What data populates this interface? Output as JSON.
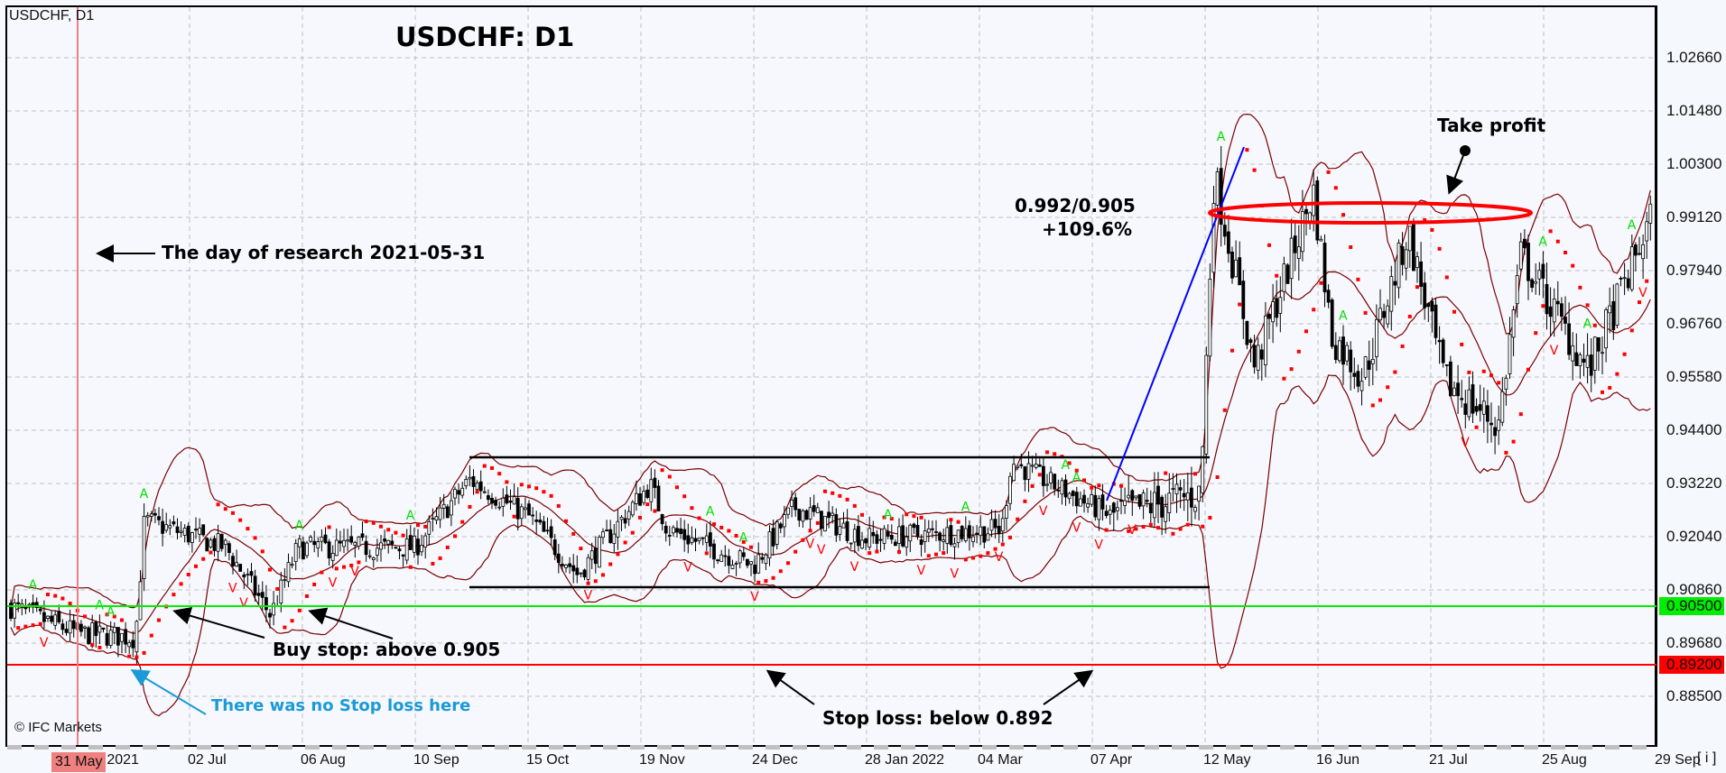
{
  "window": {
    "symbol_label": "USDCHF, D1",
    "title": "USDCHF: D1",
    "copyright": "© IFC Markets",
    "info_button": "[ i ]"
  },
  "annotations": {
    "research_day": "The day of research 2021-05-31",
    "buy_stop": "Buy stop: above 0.905",
    "no_stop_loss": "There was no Stop loss here",
    "stop_loss": "Stop loss: below 0.892",
    "take_profit": "Take profit",
    "ratio": "0.992/0.905",
    "percent": "+109.6%"
  },
  "colors": {
    "background": "#f6f8fd",
    "grid": "#c0c0c0",
    "bollinger": "#7a0000",
    "sar": "#ff0000",
    "fractal_up": "#00dd00",
    "fractal_down": "#ff0000",
    "buy_stop_line": "#00ee00",
    "stop_loss_line": "#ff0000",
    "research_line": "#f08080",
    "trend_line": "#0000ff",
    "channel": "#000000",
    "no_stop_text": "#1a9ad6"
  },
  "y_axis": {
    "ticks": [
      "1.02660",
      "1.01480",
      "1.00300",
      "0.99120",
      "0.97940",
      "0.96760",
      "0.95580",
      "0.94400",
      "0.93220",
      "0.92040",
      "0.90860",
      "0.89680",
      "0.88500"
    ],
    "badges": [
      {
        "label": "0.90500",
        "color": "#00ee00"
      },
      {
        "label": "0.89200",
        "color": "#ff0000"
      }
    ]
  },
  "x_axis": {
    "highlight": "31 May",
    "ticks": [
      "ay 2021",
      "02 Jul",
      "06 Aug",
      "10 Sep",
      "15 Oct",
      "19 Nov",
      "24 Dec",
      "28 Jan 2022",
      "04 Mar",
      "07 Apr",
      "12 May",
      "16 Jun",
      "21 Jul",
      "25 Aug",
      "29 Sep"
    ]
  },
  "chart_data": {
    "type": "candlestick",
    "title": "USDCHF: D1",
    "xlabel": "",
    "ylabel": "",
    "ylim": [
      0.88,
      1.033
    ],
    "grid": true,
    "x_ticks": [
      "31 May 2021",
      "02 Jul",
      "06 Aug",
      "10 Sep",
      "15 Oct",
      "19 Nov",
      "24 Dec",
      "28 Jan 2022",
      "04 Mar",
      "07 Apr",
      "12 May",
      "16 Jun",
      "21 Jul",
      "25 Aug",
      "29 Sep"
    ],
    "y_ticks": [
      1.0266,
      1.0148,
      1.003,
      0.9912,
      0.9794,
      0.9676,
      0.9558,
      0.944,
      0.9322,
      0.9204,
      0.9086,
      0.8968,
      0.885
    ],
    "indicators": [
      "Bollinger Bands",
      "Parabolic SAR",
      "Fractals"
    ],
    "approx_close_path": [
      {
        "date": "2021-05-01",
        "price": 0.905
      },
      {
        "date": "2021-05-31",
        "price": 0.899
      },
      {
        "date": "2021-06-15",
        "price": 0.898
      },
      {
        "date": "2021-06-22",
        "price": 0.924
      },
      {
        "date": "2021-07-20",
        "price": 0.918
      },
      {
        "date": "2021-08-06",
        "price": 0.903
      },
      {
        "date": "2021-08-20",
        "price": 0.918
      },
      {
        "date": "2021-09-10",
        "price": 0.918
      },
      {
        "date": "2021-09-28",
        "price": 0.933
      },
      {
        "date": "2021-10-15",
        "price": 0.925
      },
      {
        "date": "2021-10-29",
        "price": 0.912
      },
      {
        "date": "2021-11-19",
        "price": 0.932
      },
      {
        "date": "2021-11-30",
        "price": 0.922
      },
      {
        "date": "2021-12-24",
        "price": 0.914
      },
      {
        "date": "2022-01-10",
        "price": 0.927
      },
      {
        "date": "2022-02-04",
        "price": 0.92
      },
      {
        "date": "2022-03-04",
        "price": 0.922
      },
      {
        "date": "2022-03-10",
        "price": 0.937
      },
      {
        "date": "2022-04-01",
        "price": 0.925
      },
      {
        "date": "2022-04-07",
        "price": 0.93
      },
      {
        "date": "2022-05-12",
        "price": 1.001
      },
      {
        "date": "2022-05-25",
        "price": 0.958
      },
      {
        "date": "2022-06-15",
        "price": 0.997
      },
      {
        "date": "2022-06-20",
        "price": 0.965
      },
      {
        "date": "2022-07-01",
        "price": 0.956
      },
      {
        "date": "2022-07-12",
        "price": 0.988
      },
      {
        "date": "2022-08-05",
        "price": 0.955
      },
      {
        "date": "2022-08-16",
        "price": 0.945
      },
      {
        "date": "2022-09-05",
        "price": 0.983
      },
      {
        "date": "2022-09-12",
        "price": 0.957
      },
      {
        "date": "2022-09-29",
        "price": 0.993
      }
    ],
    "levels": [
      {
        "name": "Buy stop",
        "price": 0.905
      },
      {
        "name": "Stop loss",
        "price": 0.892
      },
      {
        "name": "Take profit",
        "price": 0.992
      },
      {
        "name": "Channel top",
        "price": 0.938
      },
      {
        "name": "Channel bottom",
        "price": 0.9085
      }
    ],
    "annotations": [
      "The day of research 2021-05-31",
      "Buy stop: above 0.905",
      "There was no Stop loss here",
      "Stop loss: below 0.892",
      "Take profit",
      "0.992/0.905 +109.6%"
    ]
  }
}
